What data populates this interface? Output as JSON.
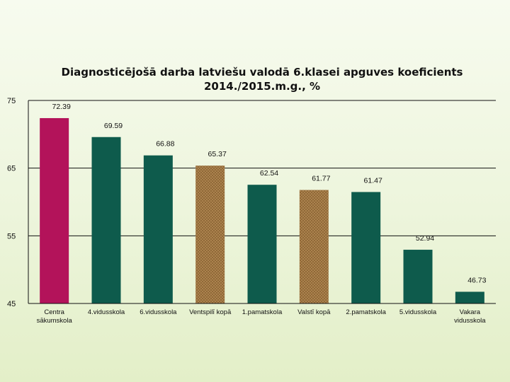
{
  "colors": {
    "background": "#eef6de",
    "bar_school": "#0e5b4c",
    "bar_highlight": "#b3135a",
    "bar_aggregate": "#b48a55",
    "bar_aggregate_hatch": "#8a6433",
    "axis": "#111111"
  },
  "chart_data": {
    "type": "bar",
    "title": "Diagnosticējošā darba latviešu valodā 6.klasei apguves koeficients 2014./2015.m.g., %",
    "title_lines": [
      "Diagnosticējošā darba latviešu valodā 6.klasei apguves koeficients",
      "2014./2015.m.g., %"
    ],
    "xlabel": "",
    "ylabel": "",
    "ylim": [
      45,
      75
    ],
    "yticks": [
      45,
      55,
      65,
      75
    ],
    "grid": true,
    "legend": "none",
    "categories": [
      "Centra sākumskola",
      "4.vidusskola",
      "6.vidusskola",
      "Ventspilī kopā",
      "1.pamatskola",
      "Valstī kopā",
      "2.pamatskola",
      "5.vidusskola",
      "Vakara vidusskola"
    ],
    "category_lines": [
      [
        "Centra",
        "sākumskola"
      ],
      [
        "4.vidusskola"
      ],
      [
        "6.vidusskola"
      ],
      [
        "Ventspilī kopā"
      ],
      [
        "1.pamatskola"
      ],
      [
        "Valstī kopā"
      ],
      [
        "2.pamatskola"
      ],
      [
        "5.vidusskola"
      ],
      [
        "Vakara",
        "vidusskola"
      ]
    ],
    "values": [
      72.39,
      69.59,
      66.88,
      65.37,
      62.54,
      61.77,
      61.47,
      52.94,
      46.73
    ],
    "data_labels": [
      "72.39",
      "69.59",
      "66.88",
      "65.37",
      "62.54",
      "61.77",
      "61.47",
      "52.94",
      "46.73"
    ],
    "bar_styles": [
      "highlight",
      "school",
      "school",
      "aggregate",
      "school",
      "aggregate",
      "school",
      "school",
      "school"
    ]
  }
}
